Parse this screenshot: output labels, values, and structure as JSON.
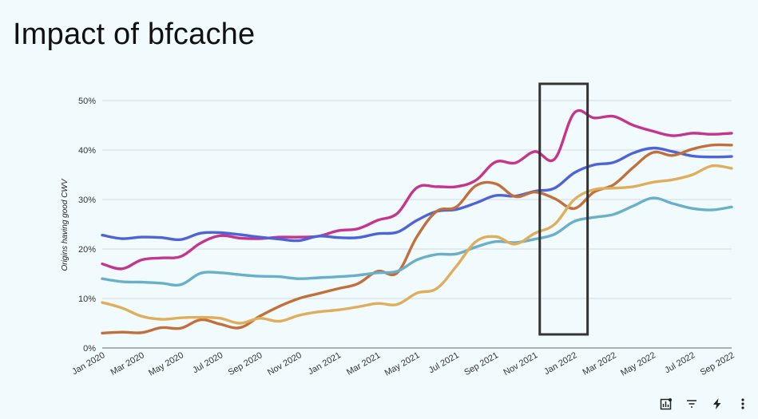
{
  "title": "Impact of bfcache",
  "toolbar": {
    "icons": [
      "chart-explore-icon",
      "filter-icon",
      "lightning-icon",
      "more-vert-icon"
    ]
  },
  "chart_data": {
    "type": "line",
    "title": "Impact of bfcache",
    "ylabel": "Origins having good CWV",
    "xlabel": "",
    "ylim": [
      0,
      50
    ],
    "y_ticks": [
      "0%",
      "10%",
      "20%",
      "30%",
      "40%",
      "50%"
    ],
    "y_tick_values": [
      0,
      10,
      20,
      30,
      40,
      50
    ],
    "x_ticks": [
      "Jan 2020",
      "Mar 2020",
      "May 2020",
      "Jul 2020",
      "Sep 2020",
      "Nov 2020",
      "Jan 2021",
      "Mar 2021",
      "May 2021",
      "Jul 2021",
      "Sep 2021",
      "Nov 2021",
      "Jan 2022",
      "Mar 2022",
      "May 2022",
      "Jul 2022",
      "Sep 2022"
    ],
    "x": [
      "2020-01",
      "2020-02",
      "2020-03",
      "2020-04",
      "2020-05",
      "2020-06",
      "2020-07",
      "2020-08",
      "2020-09",
      "2020-10",
      "2020-11",
      "2020-12",
      "2021-01",
      "2021-02",
      "2021-03",
      "2021-04",
      "2021-05",
      "2021-06",
      "2021-07",
      "2021-08",
      "2021-09",
      "2021-10",
      "2021-11",
      "2021-12",
      "2022-01",
      "2022-02",
      "2022-03",
      "2022-04",
      "2022-05",
      "2022-06",
      "2022-07",
      "2022-08",
      "2022-09"
    ],
    "grid": true,
    "legend": "none",
    "series": [
      {
        "color": "#c5348e",
        "values": [
          17,
          16,
          17.8,
          18.2,
          18.5,
          21.2,
          22.7,
          22.2,
          22.1,
          22.4,
          22.4,
          22.6,
          23.7,
          24.1,
          25.8,
          27.2,
          32.4,
          32.6,
          32.6,
          33.9,
          37.6,
          37.4,
          39.7,
          38.2,
          47.5,
          46.5,
          46.8,
          45,
          43.8,
          42.9,
          43.4,
          43.2,
          43.4
        ]
      },
      {
        "color": "#4f63d8",
        "values": [
          22.8,
          22.1,
          22.4,
          22.3,
          21.9,
          23.2,
          23.3,
          22.9,
          22.4,
          22,
          21.7,
          22.6,
          22.3,
          22.3,
          23.1,
          23.4,
          25.8,
          27.6,
          28,
          29.3,
          30.8,
          30.7,
          31.7,
          32.3,
          35.4,
          37,
          37.5,
          39.4,
          40.4,
          39.7,
          38.8,
          38.6,
          38.7
        ]
      },
      {
        "color": "#c2703b",
        "values": [
          3,
          3.2,
          3.1,
          4.1,
          4,
          5.7,
          4.8,
          4.1,
          6.4,
          8.4,
          10,
          11,
          12,
          13,
          15.5,
          15.2,
          22.5,
          27.6,
          28.5,
          32.8,
          33.2,
          30.6,
          31.5,
          30.2,
          28.2,
          31.5,
          33,
          36.5,
          39.5,
          38.9,
          40.2,
          41,
          41
        ]
      },
      {
        "color": "#6aafca",
        "values": [
          14,
          13.4,
          13.3,
          13.1,
          12.8,
          15.1,
          15.2,
          14.8,
          14.5,
          14.4,
          14,
          14.2,
          14.4,
          14.7,
          15.2,
          15.5,
          17.8,
          18.9,
          19,
          20.4,
          21.5,
          21.3,
          22,
          23,
          25.6,
          26.4,
          27,
          28.7,
          30.3,
          29.2,
          28.2,
          27.9,
          28.5
        ]
      },
      {
        "color": "#dfae5b",
        "values": [
          9.2,
          8.1,
          6.4,
          5.8,
          6.1,
          6.2,
          6,
          5,
          6,
          5.4,
          6.6,
          7.3,
          7.7,
          8.3,
          9,
          8.8,
          11.1,
          12,
          16.5,
          21.5,
          22.5,
          21,
          23.2,
          25,
          30,
          32,
          32.3,
          32.6,
          33.5,
          34,
          35,
          36.8,
          36.3
        ]
      }
    ],
    "annotation": {
      "type": "box",
      "x_from": "2021-11",
      "x_to": "2022-02"
    }
  }
}
